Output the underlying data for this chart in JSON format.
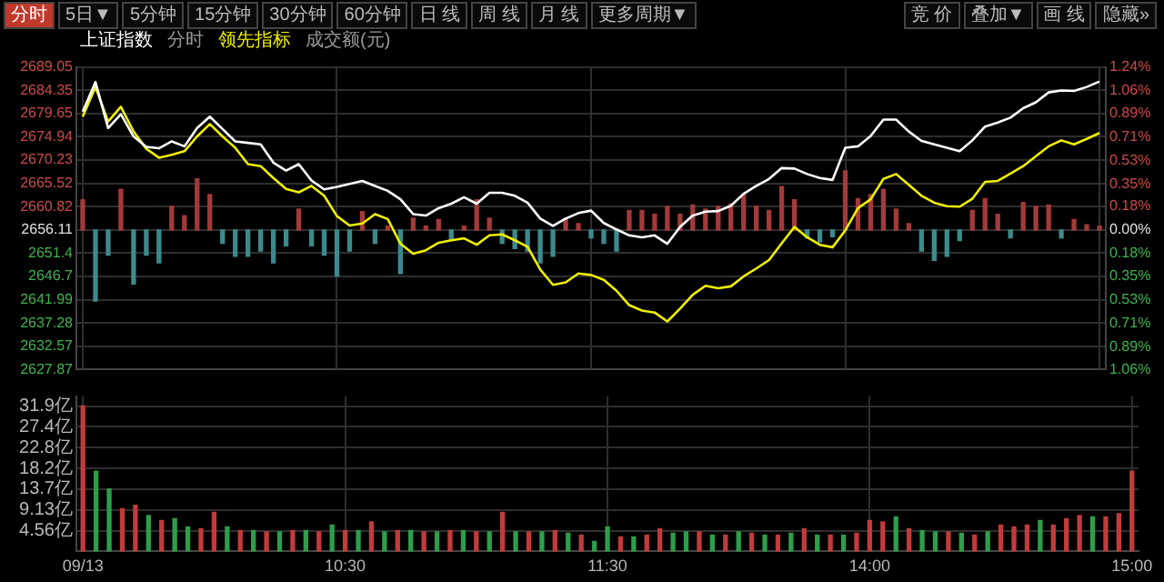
{
  "chart_data": [
    {
      "type": "line",
      "subtitle": "分时",
      "legend": "top left",
      "grid": true,
      "tick_labels": "y",
      "annotations": [
        "分时",
        "5日▼",
        "5分钟",
        "15分钟",
        "30分钟",
        "60分钟",
        "日 线",
        "周 线",
        "月 线",
        "更多周期▼",
        "竞 价",
        "叠加▼",
        "画 线",
        "隐藏»"
      ],
      "categories": [
        null,
        null,
        null,
        null,
        null,
        null,
        null,
        null,
        null,
        null,
        null,
        null,
        null,
        null,
        null,
        null,
        null,
        null,
        null,
        null,
        null,
        null,
        null,
        null,
        null,
        null,
        null,
        null,
        null,
        null,
        null,
        null,
        null,
        null,
        null,
        null,
        null,
        null,
        null,
        null,
        null,
        null,
        null,
        null,
        null,
        null,
        null,
        null,
        null,
        null,
        null,
        null,
        null,
        null,
        null,
        null,
        null,
        null,
        null,
        null,
        null,
        null,
        null,
        null,
        null,
        null,
        null,
        null,
        null,
        null,
        null,
        null,
        null,
        null,
        null,
        null,
        null,
        null,
        null,
        null,
        null
      ],
      "ylim": [
        2627.87,
        2689.05
      ],
      "yticks": [
        2689.05,
        2684.35,
        2679.65,
        2674.94,
        2670.23,
        2665.52,
        2660.82,
        2656.11,
        2651.4,
        2646.7,
        2641.99,
        2637.28,
        2632.57,
        2627.87
      ],
      "y2lim": [
        -1.06,
        1.24
      ],
      "y2ticks": [
        {
          "value": 1.24,
          "label": "1.24%"
        },
        {
          "value": 1.06,
          "label": "1.06%"
        },
        {
          "value": 0.89,
          "label": "0.89%"
        },
        {
          "value": 0.71,
          "label": "0.71%"
        },
        {
          "value": 0.53,
          "label": "0.53%"
        },
        {
          "value": 0.35,
          "label": "0.35%"
        },
        {
          "value": 0.18,
          "label": "0.18%"
        },
        {
          "value": 0,
          "label": "0.00%"
        },
        {
          "value": -0.18,
          "label": "0.18%"
        },
        {
          "value": -0.35,
          "label": "0.35%"
        },
        {
          "value": -0.53,
          "label": "0.53%"
        },
        {
          "value": -0.71,
          "label": "0.71%"
        },
        {
          "value": -0.89,
          "label": "0.89%"
        },
        {
          "value": -1.06,
          "label": "1.06%"
        }
      ],
      "series": [
        {
          "type": "bar",
          "axis": "y2",
          "color": "#a33a3a",
          "values": [
            0.23,
            null,
            null,
            0.31,
            null,
            null,
            null,
            0.18,
            0.11,
            0.39,
            0.27,
            null,
            null,
            null,
            null,
            null,
            null,
            0.16,
            null,
            null,
            null,
            null,
            0.14,
            null,
            0.03,
            null,
            0.09,
            0.03,
            0.08,
            null,
            0.03,
            0.23,
            0.09,
            null,
            null,
            null,
            null,
            null,
            0.09,
            0.05,
            null,
            null,
            null,
            0.15,
            0.15,
            0.12,
            0.18,
            0.12,
            0.19,
            0.16,
            0.18,
            0.2,
            0.27,
            0.18,
            0.15,
            0.33,
            0.23,
            null,
            null,
            null,
            0.45,
            0.24,
            0.27,
            0.31,
            0.16,
            0.05,
            null,
            null,
            null,
            null,
            0.15,
            0.24,
            0.12,
            null,
            0.21,
            0.18,
            0.19,
            null,
            0.08,
            0.04,
            0.03
          ]
        },
        {
          "type": "bar",
          "axis": "y2",
          "color": "#3d8a8c",
          "values": [
            null,
            -0.54,
            -0.19,
            null,
            -0.41,
            -0.19,
            -0.25,
            null,
            null,
            null,
            null,
            -0.1,
            -0.2,
            -0.2,
            -0.16,
            -0.25,
            -0.12,
            null,
            -0.12,
            -0.19,
            -0.35,
            -0.16,
            null,
            -0.1,
            null,
            -0.33,
            null,
            null,
            null,
            -0.08,
            null,
            null,
            null,
            -0.1,
            -0.14,
            -0.16,
            -0.25,
            -0.2,
            null,
            null,
            -0.06,
            -0.1,
            -0.16,
            null,
            null,
            null,
            null,
            null,
            null,
            null,
            null,
            null,
            null,
            null,
            null,
            null,
            null,
            -0.06,
            -0.09,
            -0.05,
            null,
            null,
            null,
            null,
            null,
            null,
            -0.16,
            -0.23,
            -0.2,
            -0.08,
            null,
            null,
            null,
            -0.06,
            null,
            null,
            null,
            -0.06,
            null,
            null,
            null
          ]
        },
        {
          "type": "line",
          "name": "上证指数",
          "color": "#ffffff",
          "values": [
            2680.0,
            2686.0,
            2676.7,
            2679.5,
            2675.0,
            2672.9,
            2672.6,
            2674.0,
            2673.0,
            2676.7,
            2679.0,
            2676.5,
            2674.0,
            2673.7,
            2673.4,
            2669.7,
            2668.1,
            2669.4,
            2666.1,
            2664.3,
            2664.8,
            2665.4,
            2666.0,
            2665.0,
            2664.0,
            2662.3,
            2659.3,
            2659.0,
            2660.5,
            2661.4,
            2662.7,
            2661.4,
            2663.6,
            2663.6,
            2663.0,
            2661.6,
            2658.4,
            2656.9,
            2658.4,
            2659.5,
            2660.0,
            2657.5,
            2656.2,
            2655.0,
            2654.6,
            2655.0,
            2653.3,
            2656.7,
            2659.0,
            2659.8,
            2659.9,
            2661.0,
            2663.4,
            2665.0,
            2666.4,
            2668.6,
            2668.5,
            2667.4,
            2666.6,
            2666.2,
            2672.7,
            2673.0,
            2675.1,
            2678.4,
            2678.4,
            2676.0,
            2674.1,
            2673.4,
            2672.7,
            2672.0,
            2674.2,
            2677.0,
            2677.8,
            2678.8,
            2680.7,
            2681.9,
            2683.9,
            2684.3,
            2684.2,
            2685.0,
            2686.1
          ]
        },
        {
          "type": "line",
          "name": "领先指标",
          "color": "#f0f000",
          "values": [
            2679.0,
            2685.0,
            2678.0,
            2681.0,
            2676.0,
            2672.5,
            2670.7,
            2671.3,
            2672.0,
            2675.0,
            2677.5,
            2675.0,
            2672.7,
            2669.4,
            2669.0,
            2666.6,
            2664.4,
            2663.7,
            2665.0,
            2663.0,
            2658.9,
            2657.0,
            2657.4,
            2659.3,
            2658.3,
            2653.3,
            2651.3,
            2652.0,
            2653.5,
            2654.0,
            2654.4,
            2653.1,
            2655.0,
            2655.2,
            2654.0,
            2652.7,
            2648.1,
            2645.0,
            2645.5,
            2647.3,
            2647.0,
            2646.0,
            2643.8,
            2640.9,
            2639.8,
            2639.4,
            2637.6,
            2640.2,
            2643.0,
            2644.8,
            2644.3,
            2644.7,
            2646.7,
            2648.3,
            2650.0,
            2653.4,
            2656.7,
            2654.6,
            2653.1,
            2652.6,
            2656.0,
            2660.5,
            2662.3,
            2666.4,
            2667.4,
            2665.2,
            2663.0,
            2661.6,
            2660.9,
            2660.8,
            2662.4,
            2665.8,
            2666.0,
            2667.5,
            2669.0,
            2671.0,
            2673.0,
            2674.2,
            2673.4,
            2674.5,
            2675.7
          ]
        }
      ]
    },
    {
      "type": "bar",
      "ylabel": "成交额(元)",
      "grid": true,
      "categories": [
        "09/13",
        null,
        null,
        null,
        null,
        null,
        null,
        null,
        null,
        null,
        null,
        null,
        null,
        null,
        null,
        null,
        null,
        null,
        null,
        null,
        "10:30",
        null,
        null,
        null,
        null,
        null,
        null,
        null,
        null,
        null,
        null,
        null,
        null,
        null,
        null,
        null,
        null,
        null,
        null,
        null,
        "11:30",
        null,
        null,
        null,
        null,
        null,
        null,
        null,
        null,
        null,
        null,
        null,
        null,
        null,
        null,
        null,
        null,
        null,
        null,
        null,
        "14:00",
        null,
        null,
        null,
        null,
        null,
        null,
        null,
        null,
        null,
        null,
        null,
        null,
        null,
        null,
        null,
        null,
        null,
        null,
        null,
        "15:00"
      ],
      "ylim": [
        0,
        34
      ],
      "yticks": [
        {
          "value": 4.56,
          "label": "4.56亿"
        },
        {
          "value": 9.13,
          "label": "9.13亿"
        },
        {
          "value": 13.7,
          "label": "13.7亿"
        },
        {
          "value": 18.2,
          "label": "18.2亿"
        },
        {
          "value": 22.8,
          "label": "22.8亿"
        },
        {
          "value": 27.4,
          "label": "27.4亿"
        },
        {
          "value": 31.9,
          "label": "31.9亿"
        }
      ],
      "series": [
        {
          "color": "#c23b3b",
          "values": [
            31.9,
            null,
            null,
            9.4,
            10.1,
            null,
            6.8,
            null,
            null,
            5.0,
            8.6,
            null,
            4.6,
            null,
            4.3,
            null,
            4.6,
            null,
            4.3,
            null,
            4.6,
            null,
            6.5,
            null,
            4.6,
            null,
            4.3,
            null,
            4.6,
            null,
            4.3,
            null,
            8.6,
            null,
            4.3,
            null,
            4.6,
            null,
            3.6,
            null,
            null,
            3.2,
            null,
            3.6,
            5.0,
            null,
            null,
            4.3,
            null,
            3.6,
            null,
            4.0,
            null,
            3.6,
            null,
            5.0,
            null,
            3.6,
            null,
            4.0,
            6.8,
            6.5,
            null,
            5.0,
            null,
            null,
            4.3,
            null,
            3.6,
            null,
            5.8,
            5.4,
            5.8,
            null,
            5.8,
            7.2,
            7.9,
            null,
            7.6,
            8.3,
            17.6
          ]
        },
        {
          "color": "#2e9e4a",
          "values": [
            null,
            17.6,
            13.7,
            null,
            null,
            7.9,
            null,
            7.2,
            5.4,
            null,
            null,
            5.4,
            null,
            4.6,
            null,
            4.3,
            null,
            4.6,
            null,
            5.8,
            null,
            4.6,
            null,
            4.3,
            null,
            4.6,
            null,
            4.3,
            null,
            4.6,
            null,
            4.3,
            null,
            4.3,
            null,
            4.3,
            null,
            4.0,
            null,
            2.2,
            5.4,
            null,
            3.2,
            null,
            null,
            4.0,
            4.3,
            null,
            3.6,
            null,
            4.3,
            null,
            3.6,
            null,
            4.0,
            null,
            3.6,
            null,
            3.6,
            null,
            null,
            null,
            7.6,
            null,
            4.6,
            4.3,
            null,
            4.0,
            null,
            4.3,
            null,
            null,
            null,
            6.8,
            null,
            null,
            null,
            7.6,
            null,
            null,
            null
          ]
        }
      ]
    }
  ]
}
